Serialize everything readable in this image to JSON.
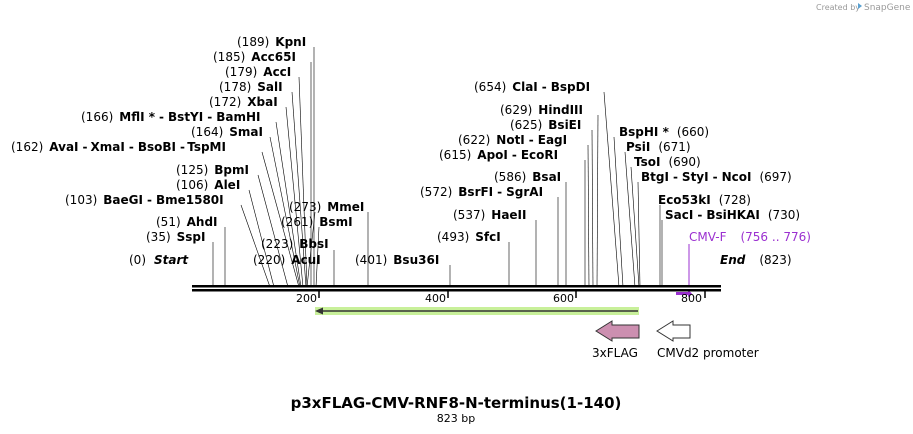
{
  "brand": {
    "created_by": "Created by",
    "app": "SnapGene"
  },
  "title": "p3xFLAG-CMV-RNF8-N-terminus(1-140)",
  "length_label": "823 bp",
  "start": {
    "label": "Start",
    "pos": "(0)"
  },
  "end": {
    "label": "End",
    "pos": "(823)"
  },
  "ticks": [
    "200",
    "400",
    "600",
    "800"
  ],
  "sites": [
    {
      "pos": "(189)",
      "names": [
        "KpnI"
      ]
    },
    {
      "pos": "(185)",
      "names": [
        "Acc65I"
      ]
    },
    {
      "pos": "(179)",
      "names": [
        "AccI"
      ]
    },
    {
      "pos": "(178)",
      "names": [
        "SalI"
      ]
    },
    {
      "pos": "(172)",
      "names": [
        "XbaI"
      ]
    },
    {
      "pos": "(166)",
      "names": [
        "MflI *",
        "BstYI",
        "BamHI"
      ]
    },
    {
      "pos": "(164)",
      "names": [
        "SmaI"
      ]
    },
    {
      "pos": "(162)",
      "names": [
        "AvaI",
        "XmaI",
        "BsoBI",
        "TspMI"
      ]
    },
    {
      "pos": "(125)",
      "names": [
        "BpmI"
      ]
    },
    {
      "pos": "(106)",
      "names": [
        "AleI"
      ]
    },
    {
      "pos": "(103)",
      "names": [
        "BaeGI",
        "Bme1580I"
      ]
    },
    {
      "pos": "(51)",
      "names": [
        "AhdI"
      ]
    },
    {
      "pos": "(35)",
      "names": [
        "SspI"
      ]
    },
    {
      "pos": "(273)",
      "names": [
        "MmeI"
      ]
    },
    {
      "pos": "(261)",
      "names": [
        "BsmI"
      ]
    },
    {
      "pos": "(223)",
      "names": [
        "BbsI"
      ]
    },
    {
      "pos": "(220)",
      "names": [
        "AcuI"
      ]
    },
    {
      "pos": "(401)",
      "names": [
        "Bsu36I"
      ]
    },
    {
      "pos": "(493)",
      "names": [
        "SfcI"
      ]
    },
    {
      "pos": "(537)",
      "names": [
        "HaeII"
      ]
    },
    {
      "pos": "(572)",
      "names": [
        "BsrFI",
        "SgrAI"
      ]
    },
    {
      "pos": "(586)",
      "names": [
        "BsaI"
      ]
    },
    {
      "pos": "(615)",
      "names": [
        "ApoI",
        "EcoRI"
      ]
    },
    {
      "pos": "(622)",
      "names": [
        "NotI",
        "EagI"
      ]
    },
    {
      "pos": "(625)",
      "names": [
        "BsiEI"
      ]
    },
    {
      "pos": "(629)",
      "names": [
        "HindIII"
      ]
    },
    {
      "pos": "(654)",
      "names": [
        "ClaI",
        "BspDI"
      ]
    },
    {
      "pos": "(660)",
      "names": [
        "BspHI *"
      ]
    },
    {
      "pos": "(671)",
      "names": [
        "PsiI"
      ]
    },
    {
      "pos": "(690)",
      "names": [
        "TsoI"
      ]
    },
    {
      "pos": "(697)",
      "names": [
        "BtgI",
        "StyI",
        "NcoI"
      ]
    },
    {
      "pos": "(728)",
      "names": [
        "Eco53kI"
      ]
    },
    {
      "pos": "(730)",
      "names": [
        "SacI",
        "BsiHKAI"
      ]
    }
  ],
  "primer": {
    "name": "CMV-F",
    "range": "(756 .. 776)"
  },
  "features": [
    {
      "name": "3xFLAG",
      "color": "#cc8fb0"
    },
    {
      "name": "CMVd2 promoter",
      "color": "#ffffff"
    }
  ],
  "colors": {
    "orf": "#9cdc5c",
    "primer": "#9b30d0",
    "axis": "#000000"
  }
}
